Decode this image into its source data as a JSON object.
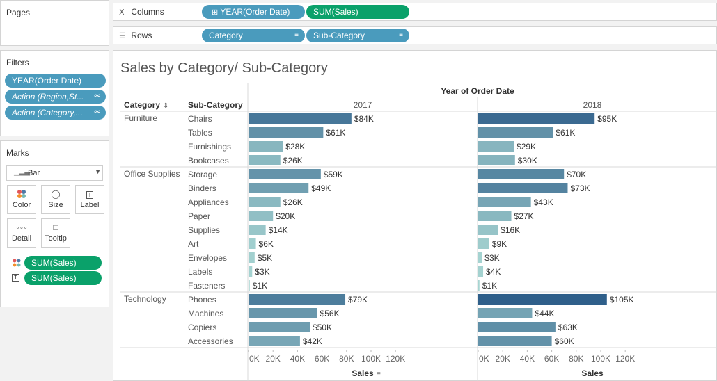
{
  "pages": {
    "title": "Pages"
  },
  "columns_shelf": {
    "label": "Columns",
    "pills": [
      {
        "text": "YEAR(Order Date)"
      },
      {
        "text": "SUM(Sales)"
      }
    ]
  },
  "rows_shelf": {
    "label": "Rows",
    "pills": [
      {
        "text": "Category"
      },
      {
        "text": "Sub-Category"
      }
    ]
  },
  "filters": {
    "title": "Filters",
    "items": [
      "YEAR(Order Date)",
      "Action (Region,St...",
      "Action (Category,..."
    ]
  },
  "marks": {
    "title": "Marks",
    "type": "Bar",
    "buttons": [
      "Color",
      "Size",
      "Label",
      "Detail",
      "Tooltip"
    ],
    "fields": [
      "SUM(Sales)",
      "SUM(Sales)"
    ]
  },
  "view": {
    "title": "Sales by Category/ Sub-Category",
    "col_header": "Year of Order Date",
    "row_header_category": "Category",
    "row_header_subcategory": "Sub-Category",
    "axis_title": "Sales"
  },
  "colors": {
    "ramp": [
      "#a7d5d2",
      "#2f5f8a"
    ],
    "pill_blue": "#4a9bbd",
    "pill_green": "#0aa16a"
  },
  "chart_data": {
    "type": "bar",
    "title": "Sales by Category/ Sub-Category",
    "xlabel": "Sales",
    "xlim": [
      0,
      120000
    ],
    "tick_labels": [
      "0K",
      "20K",
      "40K",
      "60K",
      "80K",
      "100K",
      "120K"
    ],
    "panels": [
      "2017",
      "2018"
    ],
    "groups": [
      {
        "category": "Furniture",
        "rows": [
          {
            "sub": "Chairs",
            "values": [
              84000,
              95000
            ],
            "labels": [
              "$84K",
              "$95K"
            ]
          },
          {
            "sub": "Tables",
            "values": [
              61000,
              61000
            ],
            "labels": [
              "$61K",
              "$61K"
            ]
          },
          {
            "sub": "Furnishings",
            "values": [
              28000,
              29000
            ],
            "labels": [
              "$28K",
              "$29K"
            ]
          },
          {
            "sub": "Bookcases",
            "values": [
              26000,
              30000
            ],
            "labels": [
              "$26K",
              "$30K"
            ]
          }
        ]
      },
      {
        "category": "Office Supplies",
        "rows": [
          {
            "sub": "Storage",
            "values": [
              59000,
              70000
            ],
            "labels": [
              "$59K",
              "$70K"
            ]
          },
          {
            "sub": "Binders",
            "values": [
              49000,
              73000
            ],
            "labels": [
              "$49K",
              "$73K"
            ]
          },
          {
            "sub": "Appliances",
            "values": [
              26000,
              43000
            ],
            "labels": [
              "$26K",
              "$43K"
            ]
          },
          {
            "sub": "Paper",
            "values": [
              20000,
              27000
            ],
            "labels": [
              "$20K",
              "$27K"
            ]
          },
          {
            "sub": "Supplies",
            "values": [
              14000,
              16000
            ],
            "labels": [
              "$14K",
              "$16K"
            ]
          },
          {
            "sub": "Art",
            "values": [
              6000,
              9000
            ],
            "labels": [
              "$6K",
              "$9K"
            ]
          },
          {
            "sub": "Envelopes",
            "values": [
              5000,
              3000
            ],
            "labels": [
              "$5K",
              "$3K"
            ]
          },
          {
            "sub": "Labels",
            "values": [
              3000,
              4000
            ],
            "labels": [
              "$3K",
              "$4K"
            ]
          },
          {
            "sub": "Fasteners",
            "values": [
              1000,
              1000
            ],
            "labels": [
              "$1K",
              "$1K"
            ]
          }
        ]
      },
      {
        "category": "Technology",
        "rows": [
          {
            "sub": "Phones",
            "values": [
              79000,
              105000
            ],
            "labels": [
              "$79K",
              "$105K"
            ]
          },
          {
            "sub": "Machines",
            "values": [
              56000,
              44000
            ],
            "labels": [
              "$56K",
              "$44K"
            ]
          },
          {
            "sub": "Copiers",
            "values": [
              50000,
              63000
            ],
            "labels": [
              "$50K",
              "$63K"
            ]
          },
          {
            "sub": "Accessories",
            "values": [
              42000,
              60000
            ],
            "labels": [
              "$42K",
              "$60K"
            ]
          }
        ]
      }
    ]
  }
}
